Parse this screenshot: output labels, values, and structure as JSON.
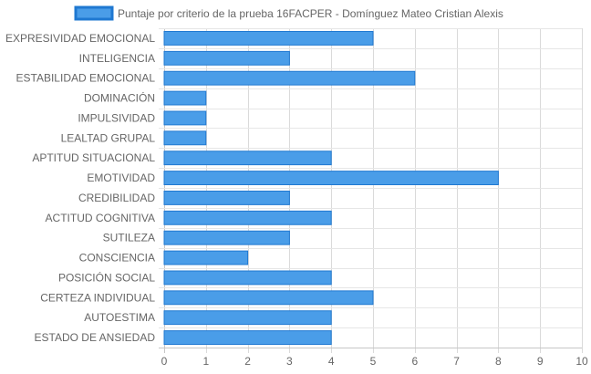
{
  "chart_data": {
    "type": "bar",
    "orientation": "horizontal",
    "title": "",
    "xlabel": "",
    "ylabel": "",
    "xlim": [
      0,
      10
    ],
    "x_ticks": [
      "0",
      "1",
      "2",
      "3",
      "4",
      "5",
      "6",
      "7",
      "8",
      "9",
      "10"
    ],
    "grid": true,
    "legend_position": "top-center",
    "categories": [
      "EXPRESIVIDAD EMOCIONAL",
      "INTELIGENCIA",
      "ESTABILIDAD EMOCIONAL",
      "DOMINACIÓN",
      "IMPULSIVIDAD",
      "LEALTAD GRUPAL",
      "APTITUD SITUACIONAL",
      "EMOTIVIDAD",
      "CREDIBILIDAD",
      "ACTITUD COGNITIVA",
      "SUTILEZA",
      "CONSCIENCIA",
      "POSICIÓN SOCIAL",
      "CERTEZA INDIVIDUAL",
      "AUTOESTIMA",
      "ESTADO DE ANSIEDAD"
    ],
    "series": [
      {
        "name": "Puntaje por criterio de la prueba 16FACPER - Domínguez Mateo Cristian Alexis",
        "values": [
          5,
          3,
          6,
          1,
          1,
          1,
          4,
          8,
          3,
          4,
          3,
          2,
          4,
          5,
          4,
          4
        ],
        "fill_color": "#4a9de8",
        "border_color": "#1f78d1"
      }
    ]
  }
}
